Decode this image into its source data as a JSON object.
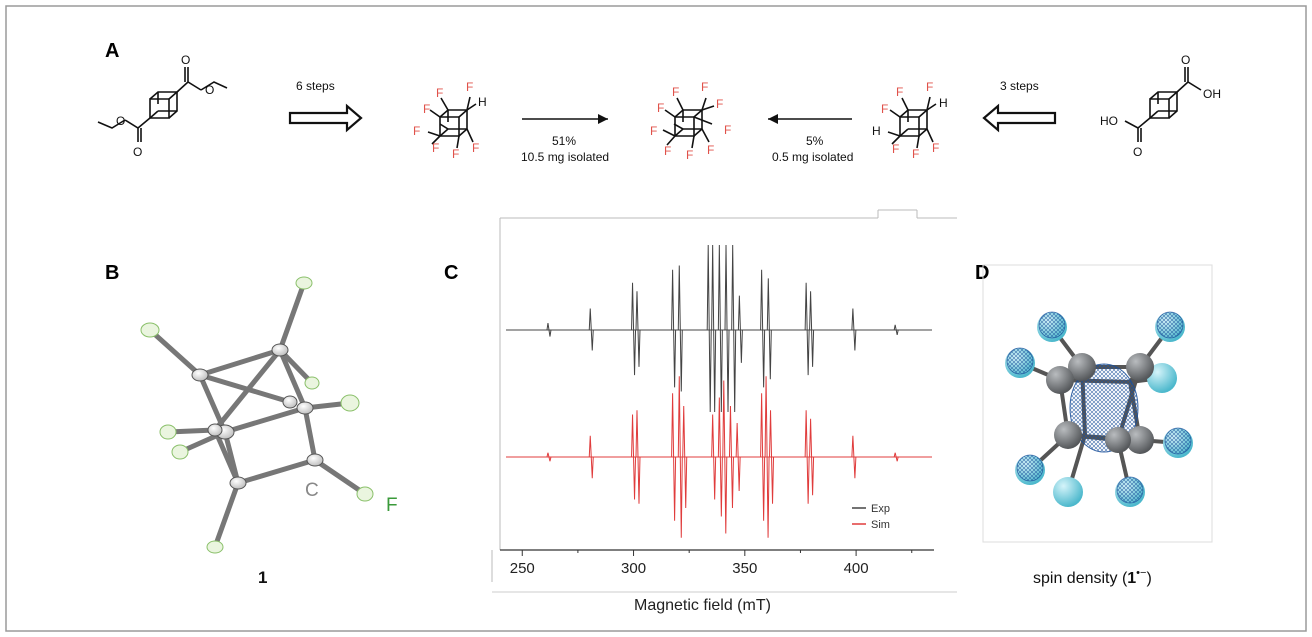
{
  "panels": {
    "a": "A",
    "b": "B",
    "c": "C",
    "d": "D"
  },
  "scheme": {
    "left_steps": "6 steps",
    "right_steps": "3 steps",
    "forward_yield": "51%",
    "forward_mass": "10.5 mg isolated",
    "reverse_yield": "5%",
    "reverse_mass": "0.5 mg isolated",
    "atom_f": "F",
    "atom_h": "H",
    "atom_o": "O",
    "atom_ho": "HO",
    "atom_oh": "OH"
  },
  "crystal": {
    "label_c": "C",
    "label_f": "F",
    "compound_number": "1"
  },
  "spin_density": {
    "caption_prefix": "spin density (",
    "caption_number": "1",
    "caption_superscript": "•−",
    "caption_suffix": ")",
    "carbon_color": "#7a7d80",
    "fluorine_color": "#6fd0e0",
    "mesh_color": "#1a4f9a"
  },
  "chart_data": {
    "type": "line",
    "xlabel": "Magnetic field (mT)",
    "xlim": [
      240,
      435
    ],
    "xticks": [
      250,
      300,
      350,
      400
    ],
    "legend": [
      {
        "name": "Exp",
        "color": "#444444"
      },
      {
        "name": "Sim",
        "color": "#e03c3c"
      }
    ],
    "legend_position": "bottom-right",
    "series": [
      {
        "name": "Exp",
        "color": "#444444",
        "lines": [
          {
            "x": 262,
            "a": 0.08
          },
          {
            "x": 281,
            "a": 0.25
          },
          {
            "x": 300,
            "a": 0.55
          },
          {
            "x": 302,
            "a": 0.45
          },
          {
            "x": 318,
            "a": 0.7
          },
          {
            "x": 321,
            "a": 0.75
          },
          {
            "x": 334,
            "a": 1.0
          },
          {
            "x": 336,
            "a": 1.0
          },
          {
            "x": 339,
            "a": 1.0
          },
          {
            "x": 342,
            "a": 1.0
          },
          {
            "x": 345,
            "a": 1.0
          },
          {
            "x": 348,
            "a": 0.4
          },
          {
            "x": 358,
            "a": 0.7
          },
          {
            "x": 361,
            "a": 0.6
          },
          {
            "x": 378,
            "a": 0.55
          },
          {
            "x": 380,
            "a": 0.45
          },
          {
            "x": 399,
            "a": 0.25
          },
          {
            "x": 418,
            "a": 0.06
          }
        ]
      },
      {
        "name": "Sim",
        "color": "#e03c3c",
        "lines": [
          {
            "x": 262,
            "a": 0.05
          },
          {
            "x": 281,
            "a": 0.25
          },
          {
            "x": 300,
            "a": 0.5
          },
          {
            "x": 302,
            "a": 0.55
          },
          {
            "x": 318,
            "a": 0.75
          },
          {
            "x": 321,
            "a": 0.95
          },
          {
            "x": 323,
            "a": 0.6
          },
          {
            "x": 336,
            "a": 0.5
          },
          {
            "x": 339,
            "a": 0.7
          },
          {
            "x": 341,
            "a": 0.9
          },
          {
            "x": 344,
            "a": 0.6
          },
          {
            "x": 347,
            "a": 0.4
          },
          {
            "x": 358,
            "a": 0.75
          },
          {
            "x": 360,
            "a": 0.95
          },
          {
            "x": 362,
            "a": 0.55
          },
          {
            "x": 378,
            "a": 0.55
          },
          {
            "x": 380,
            "a": 0.45
          },
          {
            "x": 399,
            "a": 0.25
          },
          {
            "x": 418,
            "a": 0.05
          }
        ]
      }
    ]
  }
}
